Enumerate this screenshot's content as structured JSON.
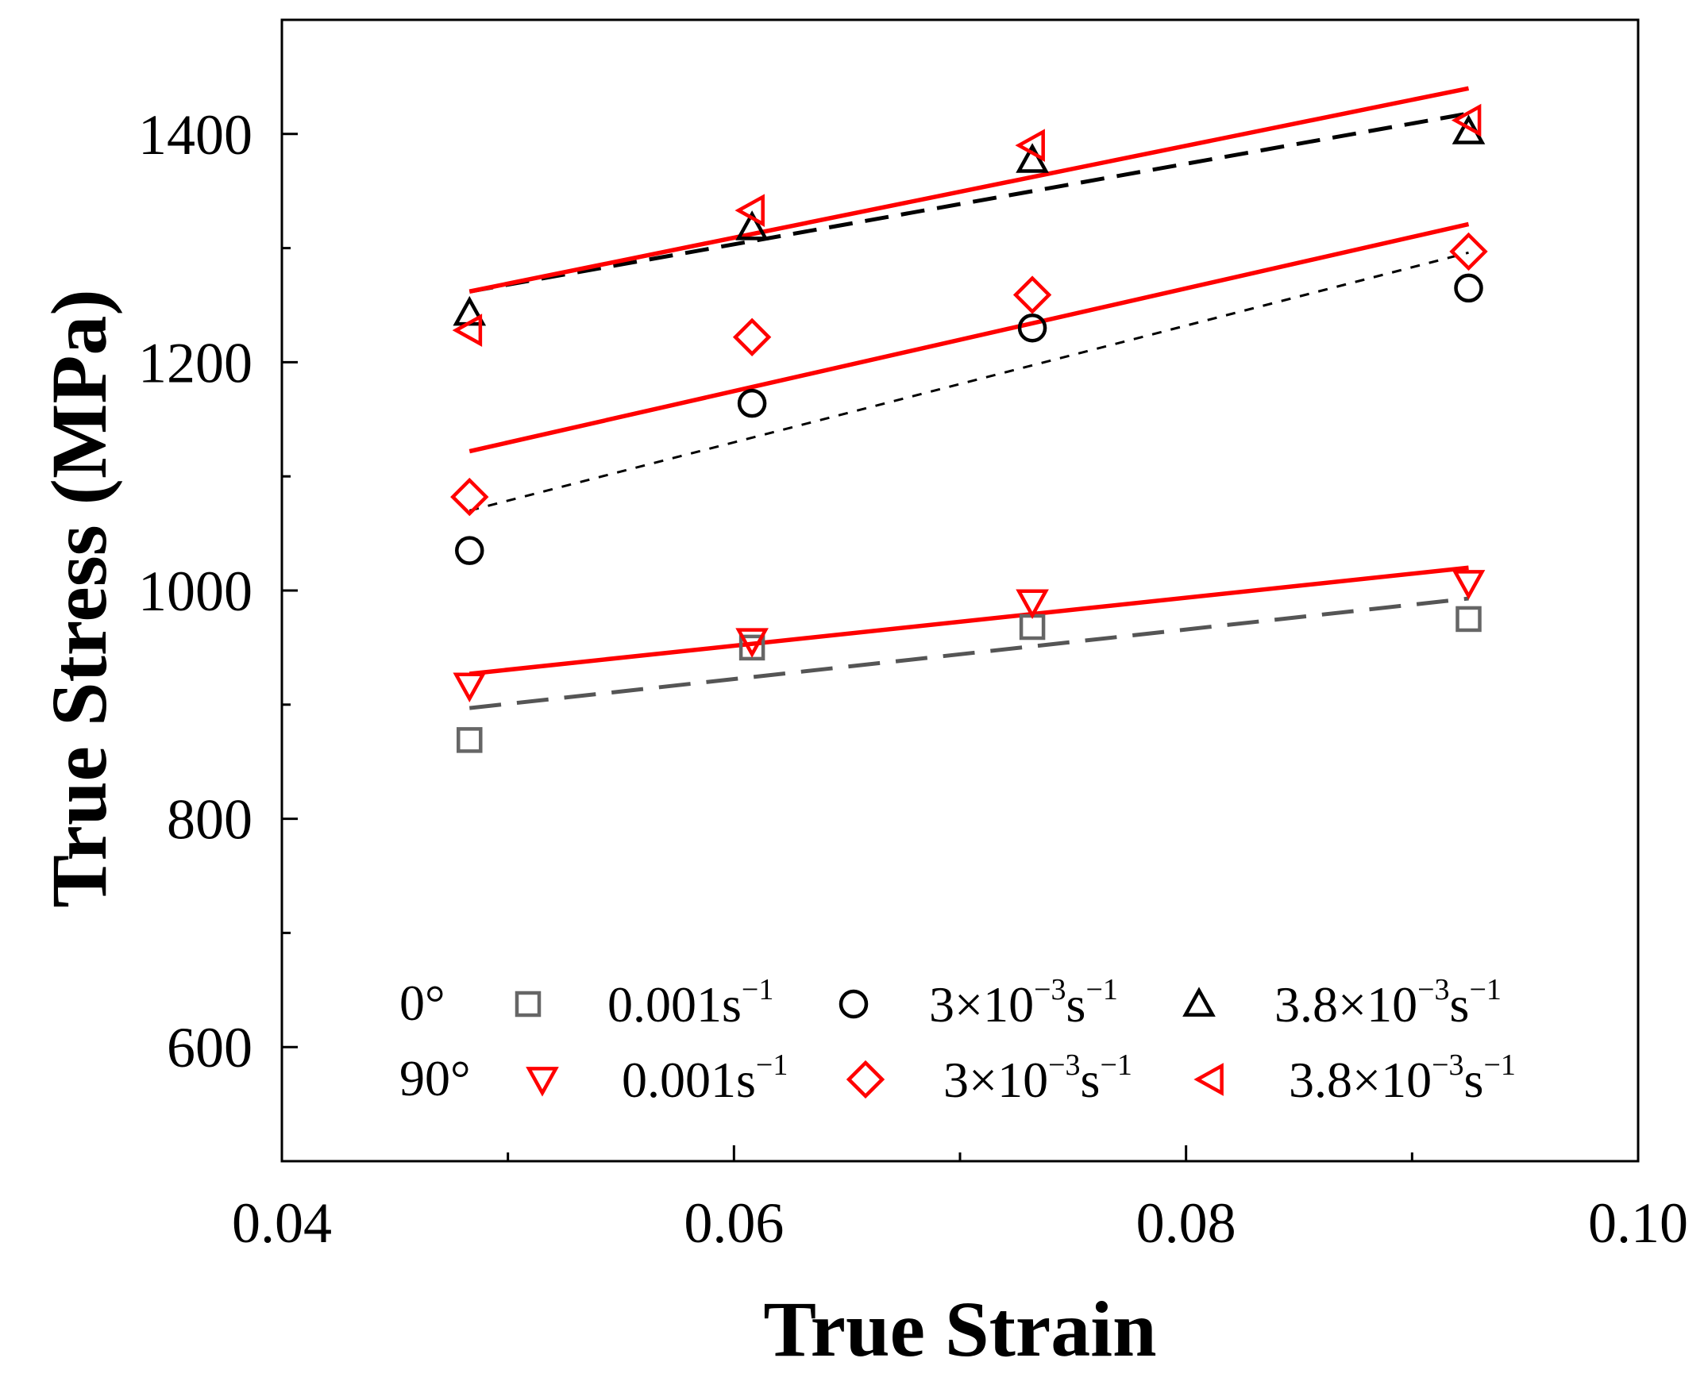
{
  "chart_data": {
    "type": "scatter",
    "title": "",
    "xlabel": "True Strain",
    "ylabel": "True Stress (MPa)",
    "xlim": [
      0.04,
      0.1
    ],
    "ylim": [
      500,
      1500
    ],
    "x_ticks": [
      0.04,
      0.06,
      0.08,
      0.1
    ],
    "x_tick_labels": [
      "0.04",
      "0.06",
      "0.08",
      "0.10"
    ],
    "y_ticks": [
      600,
      800,
      1000,
      1200,
      1400
    ],
    "y_tick_labels": [
      "600",
      "800",
      "1000",
      "1200",
      "1400"
    ],
    "grid": false,
    "legend_position": "bottom",
    "legend": {
      "row0_label": "0°",
      "row90_label": "90°",
      "entries": [
        {
          "row": "0°",
          "marker": "square",
          "rate": "0.001s",
          "exp": "−1"
        },
        {
          "row": "0°",
          "marker": "circle",
          "rate": "3×10",
          "rate_exp": "−3",
          "unit": "s",
          "unit_exp": "−1"
        },
        {
          "row": "0°",
          "marker": "triangle-up",
          "rate": "3.8×10",
          "rate_exp": "−3",
          "unit": "s",
          "unit_exp": "−1"
        },
        {
          "row": "90°",
          "marker": "triangle-down",
          "rate": "0.001s",
          "exp": "−1"
        },
        {
          "row": "90°",
          "marker": "diamond",
          "rate": "3×10",
          "rate_exp": "−3",
          "unit": "s",
          "unit_exp": "−1"
        },
        {
          "row": "90°",
          "marker": "triangle-left",
          "rate": "3.8×10",
          "rate_exp": "−3",
          "unit": "s",
          "unit_exp": "−1"
        }
      ]
    },
    "series": [
      {
        "name": "0° 0.001s⁻¹",
        "marker": "square",
        "color": "#666666",
        "x": [
          0.0483,
          0.0608,
          0.0732,
          0.0925
        ],
        "y": [
          869,
          950,
          968,
          975
        ],
        "fit": {
          "style": "long-dash",
          "color": "#555555",
          "x": [
            0.0483,
            0.0925
          ],
          "y": [
            897,
            993
          ]
        }
      },
      {
        "name": "0° 3×10⁻³s⁻¹",
        "marker": "circle",
        "color": "#000000",
        "x": [
          0.0483,
          0.0608,
          0.0732,
          0.0925
        ],
        "y": [
          1035,
          1164,
          1230,
          1265
        ],
        "fit": {
          "style": "short-dash",
          "color": "#000000",
          "x": [
            0.0483,
            0.0925
          ],
          "y": [
            1070,
            1296
          ]
        }
      },
      {
        "name": "0° 3.8×10⁻³s⁻¹",
        "marker": "triangle-up",
        "color": "#000000",
        "x": [
          0.0483,
          0.0608,
          0.0732,
          0.0925
        ],
        "y": [
          1243,
          1318,
          1377,
          1402
        ],
        "fit": {
          "style": "dash",
          "color": "#000000",
          "x": [
            0.0483,
            0.0925
          ],
          "y": [
            1262,
            1418
          ]
        }
      },
      {
        "name": "90° 0.001s⁻¹",
        "marker": "triangle-down",
        "color": "#ff0000",
        "x": [
          0.0483,
          0.0608,
          0.0732,
          0.0925
        ],
        "y": [
          917,
          956,
          990,
          1007
        ],
        "fit": {
          "style": "solid",
          "color": "#ff0000",
          "x": [
            0.0483,
            0.0925
          ],
          "y": [
            927,
            1020
          ]
        }
      },
      {
        "name": "90° 3×10⁻³s⁻¹",
        "marker": "diamond",
        "color": "#ff0000",
        "x": [
          0.0483,
          0.0608,
          0.0732,
          0.0925
        ],
        "y": [
          1082,
          1222,
          1259,
          1297
        ],
        "fit": {
          "style": "solid",
          "color": "#ff0000",
          "x": [
            0.0483,
            0.0925
          ],
          "y": [
            1122,
            1321
          ]
        }
      },
      {
        "name": "90° 3.8×10⁻³s⁻¹",
        "marker": "triangle-left",
        "color": "#ff0000",
        "x": [
          0.0483,
          0.0608,
          0.0732,
          0.0925
        ],
        "y": [
          1228,
          1333,
          1390,
          1412
        ],
        "fit": {
          "style": "solid",
          "color": "#ff0000",
          "x": [
            0.0483,
            0.0925
          ],
          "y": [
            1262,
            1440
          ]
        }
      }
    ]
  }
}
